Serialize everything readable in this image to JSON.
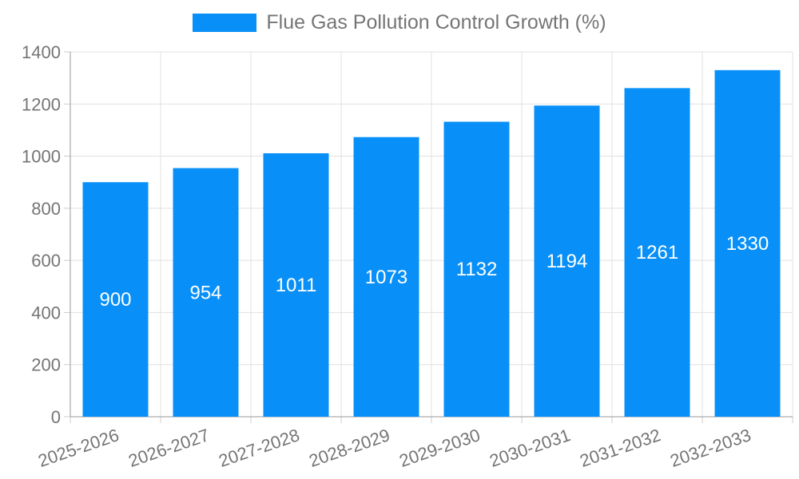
{
  "chart_data": {
    "type": "bar",
    "title": "",
    "xlabel": "",
    "ylabel": "",
    "legend": {
      "label": "Flue Gas Pollution Control Growth (%)",
      "position": "top-center"
    },
    "categories": [
      "2025-2026",
      "2026-2027",
      "2027-2028",
      "2028-2029",
      "2029-2030",
      "2030-2031",
      "2031-2032",
      "2032-2033"
    ],
    "series": [
      {
        "name": "Flue Gas Pollution Control Growth (%)",
        "values": [
          900,
          954,
          1011,
          1073,
          1132,
          1194,
          1261,
          1330
        ]
      }
    ],
    "value_labels_shown": true,
    "ylim": [
      0,
      1400
    ],
    "ytick_step": 200,
    "yticks": [
      0,
      200,
      400,
      600,
      800,
      1000,
      1200,
      1400
    ],
    "grid": true,
    "xtick_rotation_deg": -19,
    "colors": {
      "bar": "#0890f8",
      "value_label": "#ffffff",
      "axis_label": "#757575",
      "legend_label": "#757575",
      "gridline": "#e0e0e0",
      "axis_line": "#999999",
      "tick": "#cccccc",
      "background": "#ffffff"
    }
  }
}
